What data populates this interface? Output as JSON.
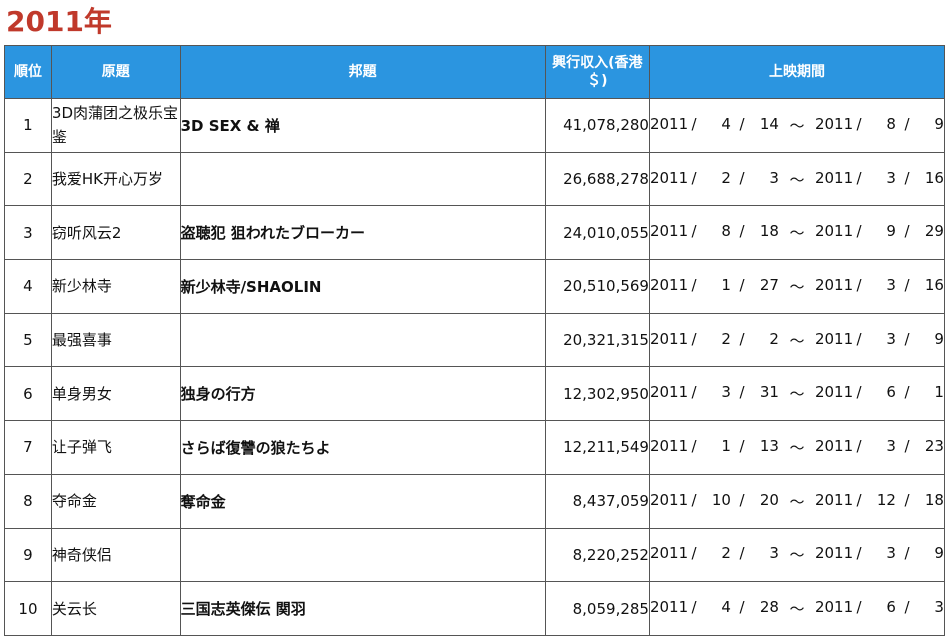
{
  "title": "2011年",
  "headers": {
    "rank": "順位",
    "original": "原題",
    "japanese": "邦題",
    "gross": "興行収入(香港＄)",
    "period": "上映期間"
  },
  "rows": [
    {
      "rank": "1",
      "original": "3D肉蒲团之极乐宝鉴",
      "japanese": "3D SEX & 禅",
      "gross": "41,078,280",
      "start": {
        "y": "2011",
        "m": "4",
        "d": "14"
      },
      "end": {
        "y": "2011",
        "m": "8",
        "d": "9"
      }
    },
    {
      "rank": "2",
      "original": "我爱HK开心万岁",
      "japanese": "",
      "gross": "26,688,278",
      "start": {
        "y": "2011",
        "m": "2",
        "d": "3"
      },
      "end": {
        "y": "2011",
        "m": "3",
        "d": "16"
      }
    },
    {
      "rank": "3",
      "original": "窃听风云2",
      "japanese": "盗聴犯 狙われたブローカー",
      "gross": "24,010,055",
      "start": {
        "y": "2011",
        "m": "8",
        "d": "18"
      },
      "end": {
        "y": "2011",
        "m": "9",
        "d": "29"
      }
    },
    {
      "rank": "4",
      "original": "新少林寺",
      "japanese": "新少林寺/SHAOLIN",
      "gross": "20,510,569",
      "start": {
        "y": "2011",
        "m": "1",
        "d": "27"
      },
      "end": {
        "y": "2011",
        "m": "3",
        "d": "16"
      }
    },
    {
      "rank": "5",
      "original": "最强喜事",
      "japanese": "",
      "gross": "20,321,315",
      "start": {
        "y": "2011",
        "m": "2",
        "d": "2"
      },
      "end": {
        "y": "2011",
        "m": "3",
        "d": "9"
      }
    },
    {
      "rank": "6",
      "original": "单身男女",
      "japanese": "独身の行方",
      "gross": "12,302,950",
      "start": {
        "y": "2011",
        "m": "3",
        "d": "31"
      },
      "end": {
        "y": "2011",
        "m": "6",
        "d": "1"
      }
    },
    {
      "rank": "7",
      "original": "让子弹飞",
      "japanese": "さらば復讐の狼たちよ",
      "gross": "12,211,549",
      "start": {
        "y": "2011",
        "m": "1",
        "d": "13"
      },
      "end": {
        "y": "2011",
        "m": "3",
        "d": "23"
      }
    },
    {
      "rank": "8",
      "original": "夺命金",
      "japanese": "奪命金",
      "gross": "8,437,059",
      "start": {
        "y": "2011",
        "m": "10",
        "d": "20"
      },
      "end": {
        "y": "2011",
        "m": "12",
        "d": "18"
      }
    },
    {
      "rank": "9",
      "original": "神奇侠侣",
      "japanese": "",
      "gross": "8,220,252",
      "start": {
        "y": "2011",
        "m": "2",
        "d": "3"
      },
      "end": {
        "y": "2011",
        "m": "3",
        "d": "9"
      }
    },
    {
      "rank": "10",
      "original": "关云长",
      "japanese": "三国志英傑伝 関羽",
      "gross": "8,059,285",
      "start": {
        "y": "2011",
        "m": "4",
        "d": "28"
      },
      "end": {
        "y": "2011",
        "m": "6",
        "d": "3"
      }
    }
  ],
  "separators": {
    "slash": "/",
    "tilde": "～"
  },
  "colors": {
    "title": "#c0392b",
    "header_bg": "#2b95e0",
    "header_text": "#ffffff",
    "border": "#555555"
  }
}
